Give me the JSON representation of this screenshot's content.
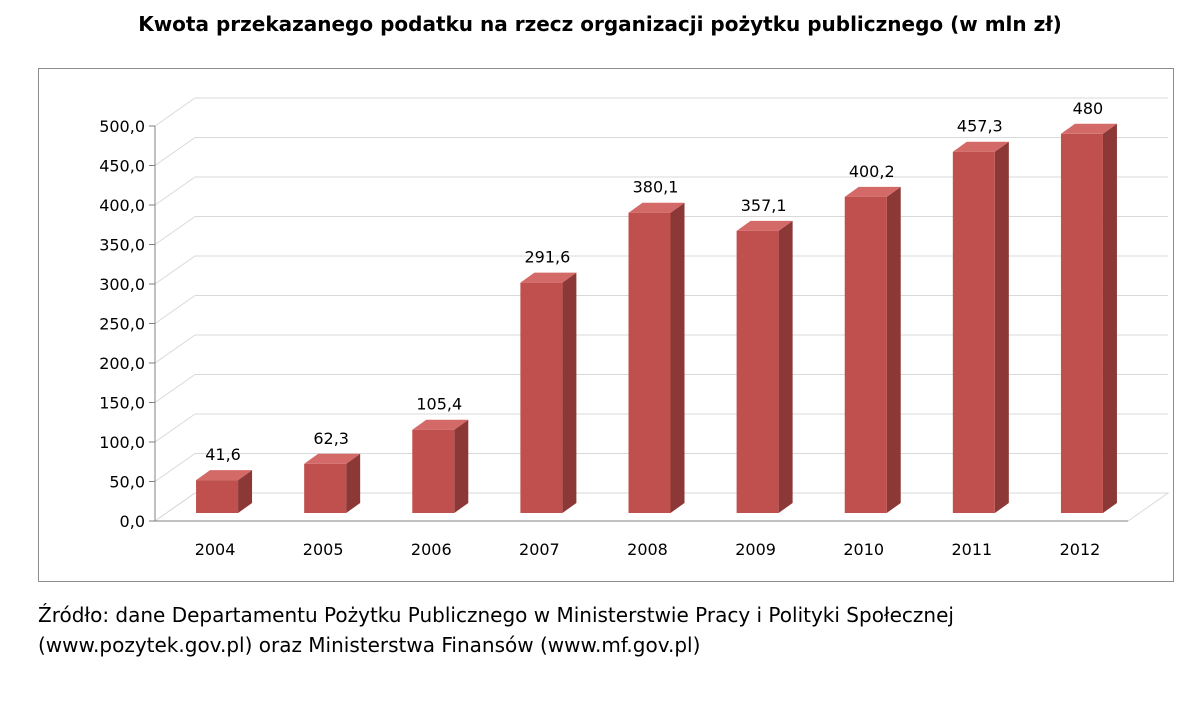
{
  "title": "Kwota przekazanego podatku na rzecz organizacji pożytku publicznego (w mln zł)",
  "source": {
    "line1": "Źródło: dane Departamentu Pożytku Publicznego w Ministerstwie Pracy i Polityki Społecznej",
    "line2": "(www.pozytek.gov.pl) oraz Ministerstwa Finansów (www.mf.gov.pl)"
  },
  "colors": {
    "bar_front": "#c0504d",
    "bar_side": "#8c3836",
    "bar_top": "#d46a67",
    "grid": "#d9d9d9",
    "axis": "#808080"
  },
  "chart_data": {
    "type": "bar",
    "title": "Kwota przekazanego podatku na rzecz organizacji pożytku publicznego (w mln zł)",
    "categories": [
      "2004",
      "2005",
      "2006",
      "2007",
      "2008",
      "2009",
      "2010",
      "2011",
      "2012"
    ],
    "values": [
      41.6,
      62.3,
      105.4,
      291.6,
      380.1,
      357.1,
      400.2,
      457.3,
      480
    ],
    "data_labels": [
      "41,6",
      "62,3",
      "105,4",
      "291,6",
      "380,1",
      "357,1",
      "400,2",
      "457,3",
      "480"
    ],
    "y_ticks": [
      "0,0",
      "50,0",
      "100,0",
      "150,0",
      "200,0",
      "250,0",
      "300,0",
      "350,0",
      "400,0",
      "450,0",
      "500,0"
    ],
    "ylim": [
      0,
      500
    ],
    "grid": true,
    "legend": "none",
    "style": "3d-column"
  }
}
